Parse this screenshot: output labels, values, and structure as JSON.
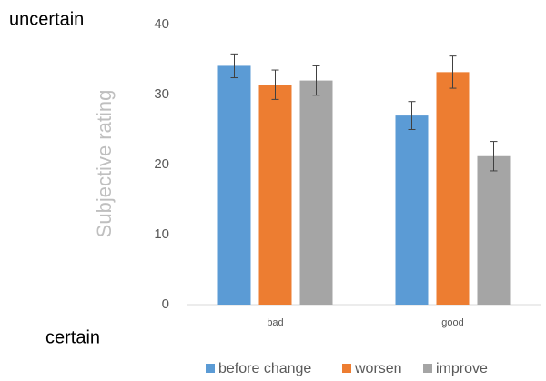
{
  "chart_data": {
    "type": "bar",
    "y_label": "Subjective rating",
    "annotations": [
      "uncertain",
      "certain"
    ],
    "categories": [
      "bad",
      "good"
    ],
    "series": [
      {
        "name": "before change",
        "color": "#5b9bd5",
        "values": [
          34.1,
          27
        ],
        "errors": [
          1.7,
          2
        ]
      },
      {
        "name": "worsen",
        "color": "#ed7d31",
        "values": [
          31.4,
          33.2
        ],
        "errors": [
          2.1,
          2.3
        ]
      },
      {
        "name": "improve",
        "color": "#a5a5a5",
        "values": [
          32,
          21.2
        ],
        "errors": [
          2.1,
          2.1
        ]
      }
    ],
    "ylim": [
      0,
      40
    ],
    "yticks": [
      0,
      10,
      20,
      30,
      40
    ],
    "grid": false,
    "legend": "bottom"
  }
}
